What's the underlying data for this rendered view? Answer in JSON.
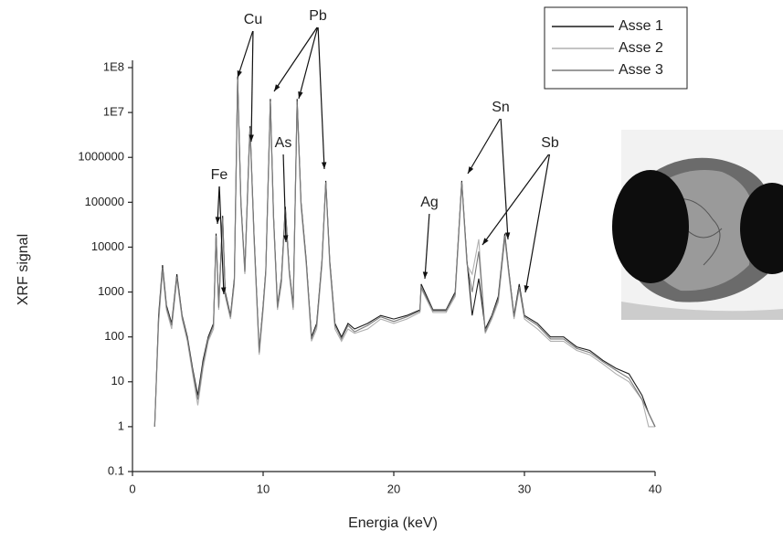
{
  "chart_data": {
    "type": "line",
    "x_label": "Energia (keV)",
    "y_label": "XRF signal",
    "log_y": true,
    "xlim": [
      0,
      40
    ],
    "xticks": [
      0,
      10,
      20,
      30,
      40
    ],
    "ylim": [
      0.1,
      100000000
    ],
    "yticks": [
      0.1,
      1,
      10,
      100,
      1000,
      10000,
      100000,
      1000000,
      {
        "value": 10000000,
        "label": "1E7"
      },
      {
        "value": 100000000,
        "label": "1E8"
      }
    ],
    "legend": "top-right",
    "annotations": [
      "Fe",
      "Cu",
      "Pb",
      "As",
      "Ag",
      "Sn",
      "Sb"
    ],
    "x": [
      1.7,
      2.0,
      2.3,
      2.6,
      3.0,
      3.4,
      3.8,
      4.2,
      4.6,
      5.0,
      5.4,
      5.8,
      6.2,
      6.4,
      6.6,
      6.9,
      7.1,
      7.5,
      7.8,
      8.05,
      8.3,
      8.6,
      8.9,
      9.0,
      9.3,
      9.7,
      10.0,
      10.2,
      10.55,
      10.8,
      11.1,
      11.4,
      11.7,
      12.0,
      12.3,
      12.6,
      12.9,
      13.3,
      13.7,
      14.1,
      14.5,
      14.8,
      15.1,
      15.5,
      16.0,
      16.5,
      17,
      18,
      19,
      20,
      21,
      22,
      22.1,
      23,
      24,
      24.7,
      25.2,
      25.6,
      26,
      26.5,
      27,
      27.5,
      28,
      28.5,
      28.8,
      29.2,
      29.6,
      30,
      31,
      32,
      33,
      34,
      35,
      36,
      37,
      38,
      39,
      39.5,
      40
    ],
    "series": [
      {
        "name": "Asse 1",
        "color": "#1a1a1a",
        "values": [
          1,
          300,
          4000,
          500,
          200,
          2500,
          300,
          100,
          20,
          5,
          30,
          100,
          200,
          20000,
          500,
          50000,
          1000,
          300,
          2000,
          60000000,
          100000,
          3000,
          1000000,
          5000000,
          20000,
          50,
          500,
          3000,
          20000000,
          50000,
          500,
          2000,
          80000,
          3000,
          500,
          20000000,
          100000,
          5000,
          100,
          200,
          5000,
          300000,
          5000,
          200,
          100,
          200,
          150,
          200,
          300,
          250,
          300,
          400,
          1500,
          400,
          400,
          1000,
          300000,
          5000,
          300,
          2000,
          150,
          300,
          800,
          20000,
          3000,
          300,
          1500,
          300,
          200,
          100,
          100,
          60,
          50,
          30,
          20,
          15,
          5,
          2,
          1
        ]
      },
      {
        "name": "Asse 2",
        "color": "#b0b0b0",
        "values": [
          1,
          200,
          3000,
          400,
          150,
          2000,
          250,
          80,
          15,
          3,
          20,
          80,
          150,
          15000,
          400,
          40000,
          800,
          250,
          1500,
          50000000,
          80000,
          2500,
          800000,
          4000000,
          15000,
          40,
          400,
          2500,
          15000000,
          40000,
          400,
          1500,
          60000,
          2500,
          400,
          15000000,
          80000,
          4000,
          80,
          150,
          4000,
          250000,
          4000,
          150,
          80,
          150,
          120,
          150,
          250,
          200,
          250,
          350,
          1200,
          350,
          350,
          800,
          250000,
          4000,
          2500,
          15000,
          120,
          250,
          600,
          15000,
          2500,
          250,
          1200,
          250,
          150,
          80,
          80,
          50,
          40,
          25,
          15,
          10,
          4,
          1,
          1
        ]
      },
      {
        "name": "Asse 3",
        "color": "#7a7a7a",
        "values": [
          1,
          250,
          3500,
          450,
          180,
          2200,
          280,
          90,
          18,
          4,
          25,
          90,
          180,
          18000,
          450,
          45000,
          900,
          280,
          1800,
          55000000,
          90000,
          2800,
          900000,
          4500000,
          18000,
          45,
          450,
          2800,
          18000000,
          45000,
          450,
          1800,
          70000,
          2800,
          450,
          18000000,
          90000,
          4500,
          90,
          180,
          4500,
          280000,
          4500,
          180,
          90,
          180,
          130,
          180,
          280,
          220,
          280,
          380,
          1300,
          380,
          380,
          900,
          280000,
          4500,
          1000,
          8000,
          130,
          280,
          700,
          18000,
          2800,
          280,
          1300,
          280,
          180,
          90,
          90,
          55,
          45,
          28,
          18,
          12,
          4,
          2,
          1
        ]
      }
    ]
  }
}
